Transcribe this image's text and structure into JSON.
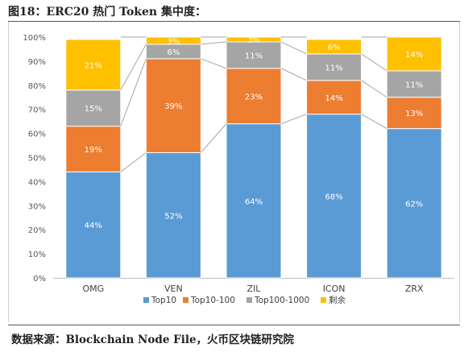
{
  "caption": {
    "title": "图18：ERC20 热门 Token 集中度：",
    "source": "数据来源：Blockchain Node File，火币区块链研究院"
  },
  "chart_data": {
    "type": "bar",
    "stacked": true,
    "percent_axis": true,
    "categories": [
      "OMG",
      "VEN",
      "ZIL",
      "ICON",
      "ZRX"
    ],
    "series": [
      {
        "name": "Top10",
        "color": "#5b9bd5",
        "values": [
          44,
          52,
          64,
          68,
          62
        ],
        "labels": [
          "44%",
          "52%",
          "64%",
          "68%",
          "62%"
        ]
      },
      {
        "name": "Top10-100",
        "color": "#ed7d31",
        "values": [
          19,
          39,
          23,
          14,
          13
        ],
        "labels": [
          "19%",
          "39%",
          "23%",
          "14%",
          "13%"
        ]
      },
      {
        "name": "Top100-1000",
        "color": "#a5a5a5",
        "values": [
          15,
          6,
          11,
          11,
          11
        ],
        "labels": [
          "15%",
          "6%",
          "11%",
          "11%",
          "11%"
        ]
      },
      {
        "name": "剩余",
        "color": "#ffc000",
        "values": [
          21,
          3,
          3,
          6,
          14
        ],
        "labels": [
          "21%",
          "3%",
          "3%",
          "6%",
          "14%"
        ]
      }
    ],
    "yticks": [
      "0%",
      "10%",
      "20%",
      "30%",
      "40%",
      "50%",
      "60%",
      "70%",
      "80%",
      "90%",
      "100%"
    ],
    "ylim": [
      0,
      100
    ],
    "series_lines": true,
    "grid": false,
    "legend_position": "bottom"
  }
}
